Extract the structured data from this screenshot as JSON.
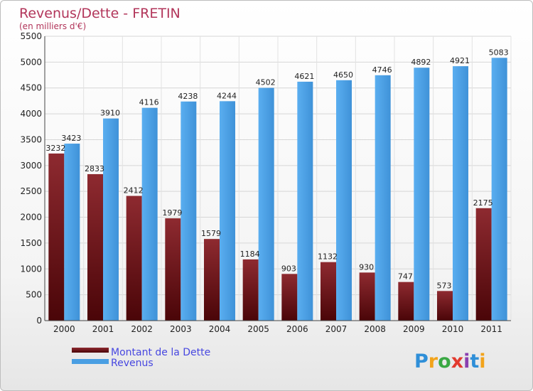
{
  "chart_data": {
    "type": "bar",
    "title": "Revenus/Dette - FRETIN",
    "subtitle": "(en milliers d'€)",
    "categories": [
      "2000",
      "2001",
      "2002",
      "2003",
      "2004",
      "2005",
      "2006",
      "2007",
      "2008",
      "2009",
      "2010",
      "2011"
    ],
    "series": [
      {
        "name": "Montant de la Dette",
        "color": "#7a1a1f",
        "values": [
          3232,
          2833,
          2412,
          1979,
          1579,
          1184,
          903,
          1132,
          930,
          747,
          573,
          2175
        ]
      },
      {
        "name": "Revenus",
        "color": "#4a9fe3",
        "values": [
          3423,
          3910,
          4116,
          4238,
          4244,
          4502,
          4621,
          4650,
          4746,
          4892,
          4921,
          5083
        ]
      }
    ],
    "ylim": [
      0,
      5500
    ],
    "yticks": [
      0,
      500,
      1000,
      1500,
      2000,
      2500,
      3000,
      3500,
      4000,
      4500,
      5000,
      5500
    ],
    "grid": true,
    "legend": "bottom-left"
  },
  "logo": {
    "text": "Proxiti",
    "letters": [
      "P",
      "r",
      "o",
      "x",
      "i",
      "t",
      "i"
    ]
  }
}
